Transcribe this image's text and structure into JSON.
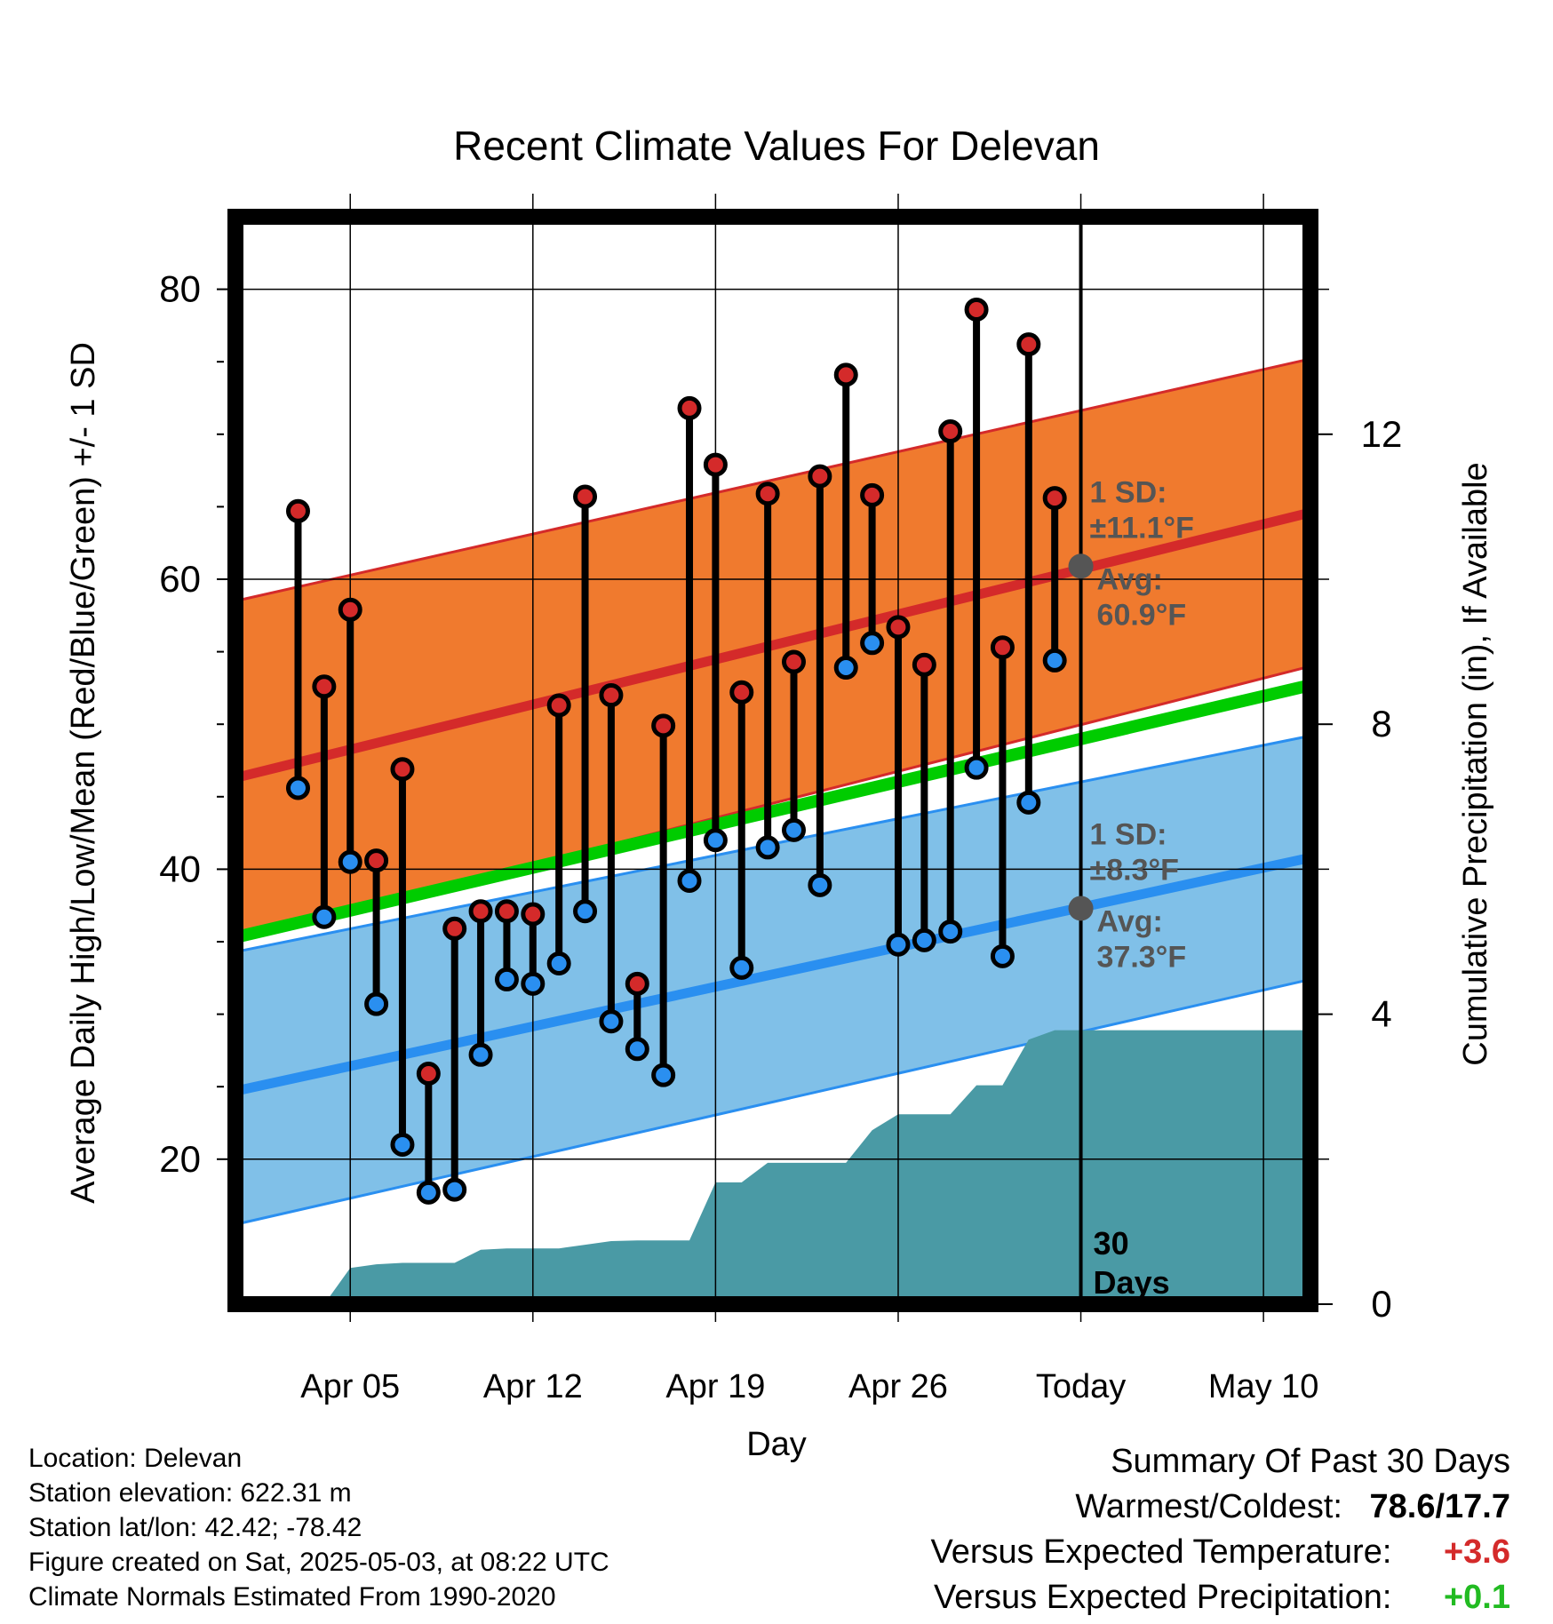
{
  "chart_data": {
    "type": "line",
    "title": "Recent Climate Values For Delevan",
    "xlabel": "Day",
    "ylabel": "Average Daily High/Low/Mean (Red/Blue/Green) +/- 1 SD",
    "y2label": "Cumulative Precipitation (in), If Available",
    "x_tick_labels": [
      "Apr 05",
      "Apr 12",
      "Apr 19",
      "Apr 26",
      "Today",
      "May 10"
    ],
    "x_range_days": [
      -32.4,
      8.8
    ],
    "ylim": [
      10,
      85
    ],
    "y_ticks": [
      20,
      40,
      60,
      80
    ],
    "y2lim": [
      0,
      15
    ],
    "y2_ticks": [
      0,
      4,
      8,
      12
    ],
    "grid": true,
    "today_marker_label": "30 Days",
    "normal_high": {
      "mean_start": 46.3,
      "mean_end": 64.6,
      "mean_today": 60.9,
      "sd_label": "1 SD:",
      "sd_value": "±11.1°F",
      "avg_label": "Avg:",
      "avg_value": "60.9°F",
      "band_low_start": 35.1,
      "band_low_end": 54.0,
      "band_high_start": 58.5,
      "band_high_end": 75.2,
      "color": "#f07a2e",
      "line_color": "#d42a2a"
    },
    "normal_low": {
      "mean_start": 24.7,
      "mean_end": 40.8,
      "mean_today": 37.3,
      "sd_label": "1 SD:",
      "sd_value": "±8.3°F",
      "avg_label": "Avg:",
      "avg_value": "37.3°F",
      "band_low_start": 15.5,
      "band_low_end": 32.4,
      "band_high_start": 34.3,
      "band_high_end": 49.2,
      "color": "#80c0e8",
      "line_color": "#2a8ff0"
    },
    "normal_mean": {
      "start": 35.3,
      "end": 52.7,
      "color": "#00cc00"
    },
    "series": [
      {
        "name": "High",
        "x": [
          -30,
          -29,
          -28,
          -27,
          -26,
          -25,
          -24,
          -23,
          -22,
          -21,
          -20,
          -19,
          -18,
          -17,
          -16,
          -15,
          -14,
          -13,
          -12,
          -11,
          -10,
          -9,
          -8,
          -7,
          -6,
          -5,
          -4,
          -3,
          -2,
          -1
        ],
        "values": [
          64.7,
          52.6,
          57.9,
          40.6,
          46.9,
          25.9,
          35.9,
          37.1,
          37.1,
          36.9,
          51.3,
          65.7,
          52.0,
          32.1,
          49.9,
          71.8,
          67.9,
          52.2,
          65.9,
          54.3,
          67.1,
          74.1,
          65.8,
          56.7,
          54.1,
          70.2,
          78.6,
          55.3,
          76.2,
          65.6
        ],
        "color": "#d42a2a"
      },
      {
        "name": "Low",
        "x": [
          -30,
          -29,
          -28,
          -27,
          -26,
          -25,
          -24,
          -23,
          -22,
          -21,
          -20,
          -19,
          -18,
          -17,
          -16,
          -15,
          -14,
          -13,
          -12,
          -11,
          -10,
          -9,
          -8,
          -7,
          -6,
          -5,
          -4,
          -3,
          -2,
          -1
        ],
        "values": [
          45.6,
          36.7,
          40.5,
          30.7,
          21.0,
          17.7,
          17.9,
          27.2,
          32.4,
          32.1,
          33.5,
          37.1,
          29.5,
          27.6,
          25.8,
          39.2,
          42.0,
          33.2,
          41.5,
          42.7,
          38.9,
          53.9,
          55.6,
          34.8,
          35.1,
          35.7,
          47.0,
          34.0,
          44.6,
          54.4
        ],
        "color": "#2a8ff0"
      }
    ],
    "precip_cumulative": {
      "x": [
        -32.4,
        -31,
        -30,
        -29,
        -28,
        -27,
        -26,
        -25,
        -24,
        -23,
        -22,
        -21,
        -20,
        -19,
        -18,
        -17,
        -16,
        -15,
        -14,
        -13,
        -12,
        -11,
        -10,
        -9,
        -8,
        -7,
        -6,
        -5,
        -4,
        -3,
        -2,
        -1,
        0,
        8.8
      ],
      "values": [
        0.0,
        0.0,
        0.0,
        0.0,
        0.5,
        0.55,
        0.57,
        0.57,
        0.57,
        0.75,
        0.77,
        0.77,
        0.77,
        0.82,
        0.87,
        0.88,
        0.88,
        0.88,
        1.68,
        1.68,
        1.95,
        1.95,
        1.95,
        1.95,
        2.4,
        2.62,
        2.62,
        2.62,
        3.02,
        3.02,
        3.65,
        3.78,
        3.78,
        3.78
      ],
      "color": "#4a9aa5"
    }
  },
  "info": {
    "location": "Location: Delevan",
    "elevation": "Station elevation: 622.31 m",
    "latlon": "Station lat/lon: 42.42; -78.42",
    "created": "Figure created on Sat, 2025-05-03, at 08:22 UTC",
    "normals": "Climate Normals Estimated From 1990-2020"
  },
  "summary": {
    "title": "Summary Of Past 30 Days",
    "warmest_label": "Warmest/Coldest:",
    "warmest_value": "78.6/17.7",
    "temp_label": "Versus Expected Temperature:",
    "temp_value": "+3.6",
    "temp_color": "#d42a2a",
    "precip_label": "Versus Expected Precipitation:",
    "precip_value": "+0.1",
    "precip_color": "#22bb22"
  }
}
